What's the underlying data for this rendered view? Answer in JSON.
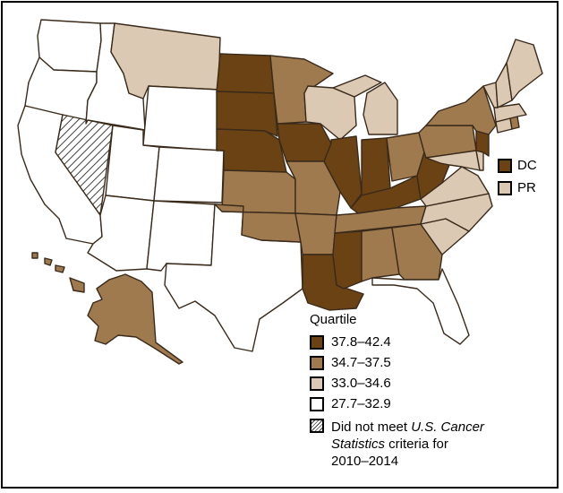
{
  "colors": {
    "q1": "#6b4214",
    "q2": "#a07a4f",
    "q3": "#dcc9b3",
    "q4": "#ffffff",
    "hatch": "#444444",
    "border": "#3a2a1a"
  },
  "legend": {
    "title": "Quartile",
    "items": [
      {
        "label": "37.8–42.4",
        "color": "#6b4214"
      },
      {
        "label": "34.7–37.5",
        "color": "#a07a4f"
      },
      {
        "label": "33.0–34.6",
        "color": "#dcc9b3"
      },
      {
        "label": "27.7–32.9",
        "color": "#ffffff"
      }
    ],
    "hatched": {
      "line1_pre": "Did not meet ",
      "line1_italic": "U.S. Cancer",
      "line2_italic": "Statistics",
      "line2_post": " criteria for",
      "line3": "2010–2014"
    }
  },
  "territories": [
    {
      "label": "DC",
      "quartile": "q1"
    },
    {
      "label": "PR",
      "quartile": "q3"
    }
  ],
  "states": {
    "WA": "q4",
    "OR": "q4",
    "CA": "q4",
    "NV": "hatch",
    "ID": "q4",
    "MT": "q3",
    "WY": "q4",
    "UT": "q4",
    "AZ": "q4",
    "CO": "q4",
    "NM": "q4",
    "TX": "q4",
    "ND": "q1",
    "SD": "q1",
    "NE": "q1",
    "KS": "q2",
    "OK": "q2",
    "MN": "q2",
    "IA": "q1",
    "MO": "q2",
    "AR": "q2",
    "LA": "q1",
    "WI": "q3",
    "IL": "q1",
    "MI": "q3",
    "IN": "q1",
    "OH": "q2",
    "KY": "q1",
    "TN": "q2",
    "MS": "q1",
    "AL": "q2",
    "GA": "q2",
    "FL": "q4",
    "SC": "q3",
    "NC": "q3",
    "VA": "q3",
    "WV": "q1",
    "PA": "q2",
    "NY": "q2",
    "NJ": "q1",
    "DE": "q3",
    "MD": "q3",
    "VT": "q3",
    "NH": "q3",
    "ME": "q3",
    "MA": "q3",
    "RI": "q2",
    "CT": "q3",
    "AK": "q2",
    "HI": "q2"
  }
}
